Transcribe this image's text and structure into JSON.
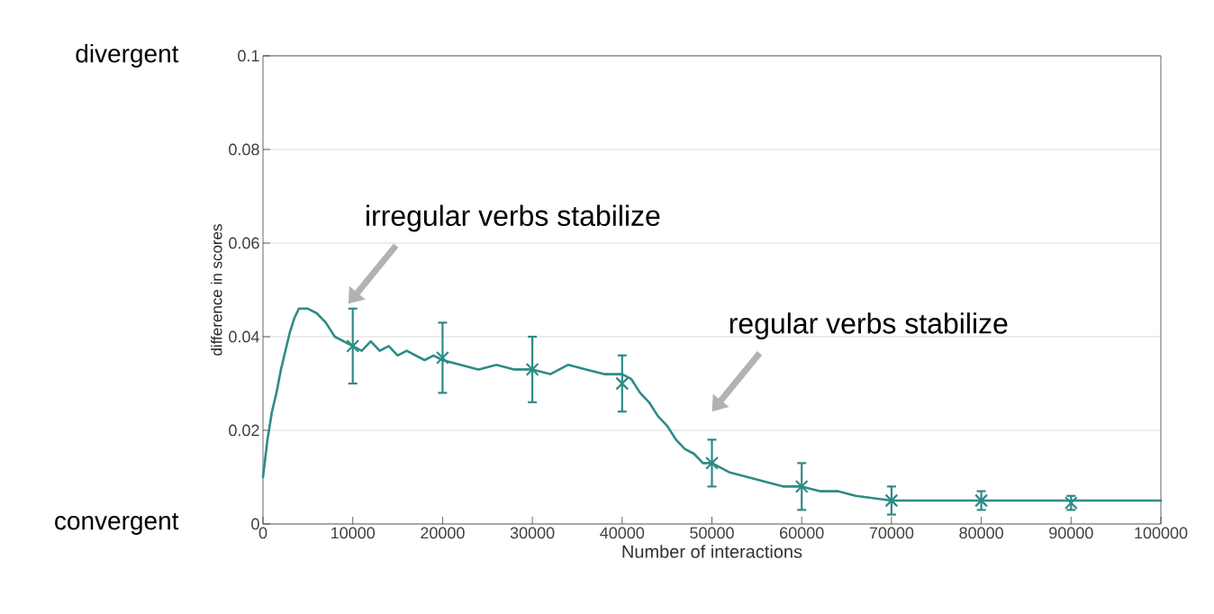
{
  "chart_data": {
    "type": "line",
    "xlabel": "Number of interactions",
    "ylabel": "difference in scores",
    "annotations": [
      "divergent",
      "convergent",
      "irregular verbs stabilize",
      "regular verbs stabilize"
    ],
    "xlim": [
      0,
      100000
    ],
    "xticks": [
      0,
      10000,
      20000,
      30000,
      40000,
      50000,
      60000,
      70000,
      80000,
      90000,
      100000
    ],
    "ylim": [
      0,
      0.1
    ],
    "yticks": [
      0,
      0.02,
      0.04,
      0.06,
      0.08,
      0.1
    ],
    "grid": "y",
    "series": [
      {
        "color": "#2e8b87",
        "x": [
          0,
          500,
          1000,
          1500,
          2000,
          2500,
          3000,
          3500,
          4000,
          5000,
          6000,
          7000,
          8000,
          9000,
          10000,
          11000,
          12000,
          13000,
          14000,
          15000,
          16000,
          17000,
          18000,
          19000,
          20000,
          22000,
          24000,
          26000,
          28000,
          30000,
          32000,
          34000,
          36000,
          38000,
          40000,
          41000,
          42000,
          43000,
          44000,
          45000,
          46000,
          47000,
          48000,
          49000,
          50000,
          52000,
          54000,
          56000,
          58000,
          60000,
          62000,
          64000,
          66000,
          70000,
          75000,
          80000,
          85000,
          90000,
          95000,
          100000
        ],
        "values": [
          0.01,
          0.018,
          0.024,
          0.028,
          0.033,
          0.037,
          0.041,
          0.044,
          0.046,
          0.046,
          0.045,
          0.043,
          0.04,
          0.039,
          0.038,
          0.037,
          0.039,
          0.037,
          0.038,
          0.036,
          0.037,
          0.036,
          0.035,
          0.036,
          0.035,
          0.034,
          0.033,
          0.034,
          0.033,
          0.033,
          0.032,
          0.034,
          0.033,
          0.032,
          0.032,
          0.031,
          0.028,
          0.026,
          0.023,
          0.021,
          0.018,
          0.016,
          0.015,
          0.013,
          0.013,
          0.011,
          0.01,
          0.009,
          0.008,
          0.008,
          0.007,
          0.007,
          0.006,
          0.005,
          0.005,
          0.005,
          0.005,
          0.005,
          0.005,
          0.005
        ]
      },
      {
        "type": "scatter",
        "marker": "cross",
        "color": "#2e8b87",
        "x": [
          10000,
          20000,
          30000,
          40000,
          50000,
          60000,
          70000,
          80000,
          90000
        ],
        "values": [
          0.038,
          0.0355,
          0.033,
          0.03,
          0.013,
          0.008,
          0.005,
          0.005,
          0.0045
        ],
        "errors": [
          0.008,
          0.0075,
          0.007,
          0.006,
          0.005,
          0.005,
          0.003,
          0.002,
          0.0015
        ]
      }
    ]
  }
}
